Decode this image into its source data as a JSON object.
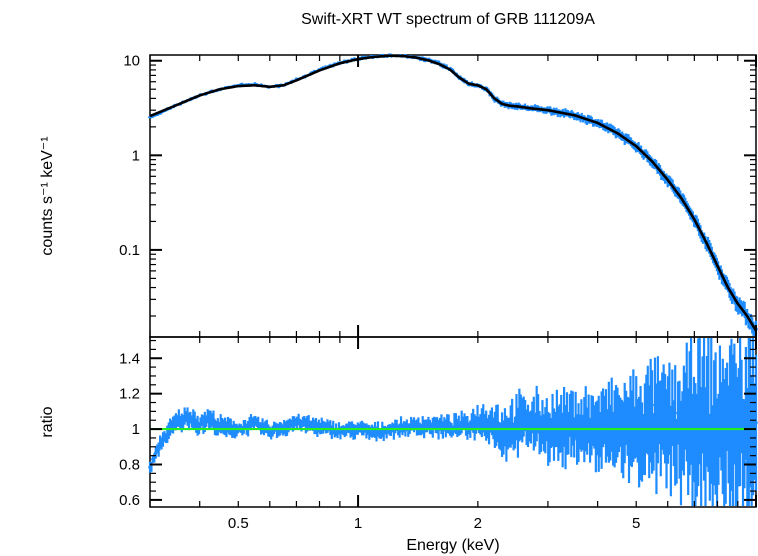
{
  "chart_data": [
    {
      "type": "line",
      "panel": "spectrum",
      "title": "Swift-XRT WT spectrum of GRB 111209A",
      "ylabel": "counts s⁻¹ keV⁻¹",
      "xlabel": "",
      "xscale": "log",
      "yscale": "log",
      "xlim": [
        0.3,
        10.0
      ],
      "ylim": [
        0.012,
        11.5
      ],
      "y_ticks": [
        {
          "value": 10,
          "label": "10"
        },
        {
          "value": 1,
          "label": "1"
        },
        {
          "value": 0.1,
          "label": "0.1"
        }
      ],
      "series": [
        {
          "kind": "data",
          "color": "#1e8cff",
          "x": [
            0.3,
            0.35,
            0.4,
            0.45,
            0.5,
            0.55,
            0.6,
            0.65,
            0.7,
            0.8,
            0.9,
            1.0,
            1.1,
            1.2,
            1.3,
            1.4,
            1.5,
            1.6,
            1.7,
            1.8,
            1.9,
            2.0,
            2.1,
            2.2,
            2.3,
            2.4,
            2.5,
            2.7,
            3.0,
            3.5,
            4.0,
            4.5,
            5.0,
            5.5,
            6.0,
            6.5,
            7.0,
            7.5,
            8.0,
            8.5,
            9.0,
            9.5,
            10.0
          ],
          "y": [
            2.5,
            3.4,
            4.3,
            5.0,
            5.5,
            5.6,
            5.3,
            5.5,
            6.3,
            8.0,
            9.5,
            10.5,
            11.2,
            11.5,
            11.3,
            10.9,
            10.2,
            9.3,
            8.2,
            6.6,
            5.7,
            5.5,
            5.0,
            4.0,
            3.5,
            3.35,
            3.3,
            3.15,
            3.0,
            2.65,
            2.2,
            1.7,
            1.25,
            0.85,
            0.55,
            0.35,
            0.21,
            0.12,
            0.068,
            0.04,
            0.027,
            0.02,
            0.014
          ]
        },
        {
          "kind": "model",
          "color": "#000000",
          "x": [
            0.3,
            0.35,
            0.4,
            0.45,
            0.5,
            0.55,
            0.6,
            0.65,
            0.7,
            0.8,
            0.9,
            1.0,
            1.1,
            1.2,
            1.3,
            1.4,
            1.5,
            1.6,
            1.7,
            1.8,
            1.9,
            2.0,
            2.1,
            2.2,
            2.3,
            2.4,
            2.5,
            2.7,
            3.0,
            3.5,
            4.0,
            4.5,
            5.0,
            5.5,
            6.0,
            6.5,
            7.0,
            7.5,
            8.0,
            8.5,
            9.0,
            9.5,
            10.0
          ],
          "y": [
            2.6,
            3.4,
            4.3,
            5.0,
            5.4,
            5.5,
            5.3,
            5.5,
            6.2,
            7.9,
            9.4,
            10.4,
            11.0,
            11.3,
            11.2,
            10.8,
            10.1,
            9.2,
            8.1,
            6.6,
            5.7,
            5.5,
            5.0,
            4.0,
            3.5,
            3.35,
            3.3,
            3.15,
            3.0,
            2.65,
            2.2,
            1.7,
            1.25,
            0.85,
            0.55,
            0.35,
            0.21,
            0.12,
            0.068,
            0.04,
            0.027,
            0.02,
            0.014
          ]
        }
      ]
    },
    {
      "type": "line",
      "panel": "ratio",
      "title": "",
      "ylabel": "ratio",
      "xlabel": "Energy (keV)",
      "xscale": "log",
      "xlim": [
        0.3,
        10.0
      ],
      "ylim": [
        0.56,
        1.52
      ],
      "x_ticks": [
        {
          "value": 0.5,
          "label": "0.5"
        },
        {
          "value": 1,
          "label": "1"
        },
        {
          "value": 2,
          "label": "2"
        },
        {
          "value": 5,
          "label": "5"
        }
      ],
      "y_ticks": [
        {
          "value": 0.6,
          "label": "0.6"
        },
        {
          "value": 0.8,
          "label": "0.8"
        },
        {
          "value": 1.0,
          "label": "1"
        },
        {
          "value": 1.2,
          "label": "1.2"
        },
        {
          "value": 1.4,
          "label": "1.4"
        }
      ],
      "series": [
        {
          "kind": "data",
          "color": "#1e8cff",
          "x": [
            0.3,
            0.32,
            0.35,
            0.38,
            0.4,
            0.42,
            0.45,
            0.5,
            0.55,
            0.6,
            0.65,
            0.7,
            0.8,
            0.9,
            1.0,
            1.1,
            1.2,
            1.3,
            1.5,
            1.7,
            1.9,
            2.0,
            2.2,
            2.3,
            2.5,
            2.7,
            3.0,
            3.3,
            3.6,
            4.0,
            4.5,
            5.0,
            5.5,
            6.0,
            6.5,
            7.0,
            7.5,
            8.0,
            8.5,
            9.0,
            9.5,
            10.0
          ],
          "y": [
            0.78,
            0.93,
            1.04,
            1.07,
            1.02,
            1.06,
            1.01,
            1.0,
            1.03,
            0.99,
            1.01,
            1.04,
            1.01,
            0.99,
            1.0,
            0.98,
            1.0,
            1.01,
            1.02,
            1.01,
            1.02,
            1.05,
            1.03,
            0.98,
            1.02,
            1.04,
            1.01,
            1.0,
            1.02,
            0.99,
            1.01,
            1.0,
            1.02,
            1.0,
            0.98,
            1.03,
            1.01,
            0.97,
            1.04,
            0.96,
            1.02,
            0.99
          ],
          "y_spread": [
            0.03,
            0.04,
            0.05,
            0.05,
            0.05,
            0.05,
            0.05,
            0.04,
            0.04,
            0.04,
            0.04,
            0.04,
            0.04,
            0.04,
            0.04,
            0.04,
            0.04,
            0.04,
            0.05,
            0.05,
            0.06,
            0.08,
            0.1,
            0.12,
            0.13,
            0.14,
            0.15,
            0.16,
            0.17,
            0.19,
            0.21,
            0.24,
            0.27,
            0.3,
            0.33,
            0.36,
            0.38,
            0.4,
            0.42,
            0.44,
            0.46,
            0.48
          ]
        },
        {
          "kind": "reference",
          "color": "#22ee22",
          "x": [
            0.3,
            10.0
          ],
          "y": [
            1.0,
            1.0
          ]
        }
      ]
    }
  ]
}
